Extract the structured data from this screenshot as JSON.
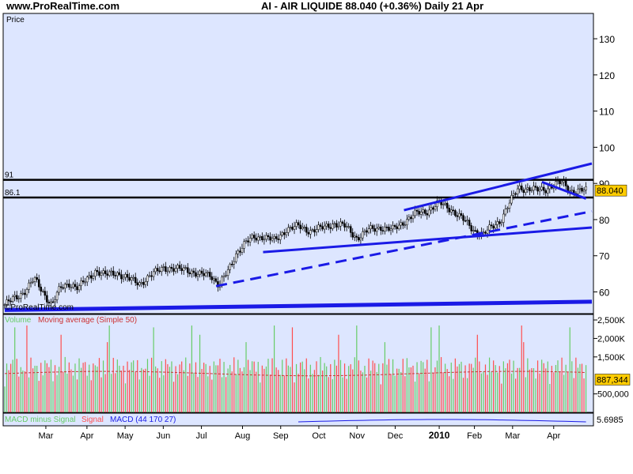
{
  "header": {
    "site": "www.ProRealTime.com",
    "title": "AI - AIR LIQUIDE    88.040 (+0.36%)    Daily  21 Apr"
  },
  "colors": {
    "panel_bg": "#dde6ff",
    "up_candle": "#ffffff",
    "down_candle": "#000000",
    "trendline": "#1a1ae6",
    "volume_up": "#66cc66",
    "volume_down": "#ff4d4d",
    "volume_ma": "#cc3333",
    "macd_hist": "#66cc66",
    "macd_signal": "#ff4d4d",
    "macd_line": "#1a1ae6",
    "price_tag": "#ffcc00"
  },
  "chart_data": [
    {
      "type": "candlestick",
      "panel": "price",
      "ylabel": "Price",
      "ylim": [
        54,
        137
      ],
      "yticks": [
        60,
        70,
        80,
        90,
        100,
        110,
        120,
        130
      ],
      "xticks": [
        "Mar",
        "Apr",
        "May",
        "Jun",
        "Jul",
        "Aug",
        "Sep",
        "Oct",
        "Nov",
        "Dec",
        "2010",
        "Feb",
        "Mar",
        "Apr"
      ],
      "last_price": "88.040",
      "horizontal_levels": [
        {
          "label": "91",
          "value": 91.0
        },
        {
          "label": "86.1",
          "value": 86.1
        }
      ],
      "trendlines": [
        {
          "name": "support-long",
          "points": [
            [
              0,
              55.0
            ],
            [
              1.0,
              57.3
            ]
          ]
        },
        {
          "name": "channel-lower-dashed",
          "points": [
            [
              0.36,
              61.6
            ],
            [
              1.0,
              82.3
            ]
          ]
        },
        {
          "name": "channel-lower",
          "points": [
            [
              0.44,
              71.0
            ],
            [
              1.0,
              77.8
            ]
          ]
        },
        {
          "name": "channel-upper",
          "points": [
            [
              0.68,
              82.6
            ],
            [
              1.0,
              95.5
            ]
          ]
        },
        {
          "name": "recent-top",
          "points": [
            [
              0.915,
              90.4
            ],
            [
              0.99,
              85.8
            ]
          ]
        }
      ],
      "price_path": [
        [
          0.0,
          56.5
        ],
        [
          0.02,
          58.5
        ],
        [
          0.035,
          60.5
        ],
        [
          0.05,
          63.5
        ],
        [
          0.065,
          60.0
        ],
        [
          0.08,
          56.5
        ],
        [
          0.095,
          61.0
        ],
        [
          0.11,
          62.5
        ],
        [
          0.125,
          61.0
        ],
        [
          0.14,
          63.5
        ],
        [
          0.155,
          66.0
        ],
        [
          0.17,
          64.5
        ],
        [
          0.19,
          65.5
        ],
        [
          0.21,
          63.5
        ],
        [
          0.23,
          62.5
        ],
        [
          0.25,
          64.5
        ],
        [
          0.27,
          67.0
        ],
        [
          0.29,
          66.0
        ],
        [
          0.31,
          66.5
        ],
        [
          0.33,
          64.5
        ],
        [
          0.35,
          65.0
        ],
        [
          0.365,
          61.8
        ],
        [
          0.38,
          65.5
        ],
        [
          0.395,
          71.0
        ],
        [
          0.41,
          73.5
        ],
        [
          0.425,
          75.0
        ],
        [
          0.44,
          75.5
        ],
        [
          0.46,
          74.0
        ],
        [
          0.48,
          77.5
        ],
        [
          0.5,
          78.0
        ],
        [
          0.52,
          77.0
        ],
        [
          0.54,
          77.5
        ],
        [
          0.56,
          79.0
        ],
        [
          0.58,
          78.0
        ],
        [
          0.6,
          75.0
        ],
        [
          0.62,
          77.0
        ],
        [
          0.64,
          78.0
        ],
        [
          0.66,
          77.0
        ],
        [
          0.68,
          79.5
        ],
        [
          0.7,
          81.5
        ],
        [
          0.72,
          82.5
        ],
        [
          0.74,
          84.5
        ],
        [
          0.76,
          83.0
        ],
        [
          0.78,
          80.0
        ],
        [
          0.8,
          77.0
        ],
        [
          0.815,
          75.8
        ],
        [
          0.83,
          78.0
        ],
        [
          0.845,
          80.0
        ],
        [
          0.86,
          84.5
        ],
        [
          0.875,
          89.0
        ],
        [
          0.89,
          88.5
        ],
        [
          0.905,
          88.0
        ],
        [
          0.92,
          88.5
        ],
        [
          0.935,
          89.5
        ],
        [
          0.95,
          90.2
        ],
        [
          0.965,
          88.0
        ],
        [
          0.98,
          87.8
        ],
        [
          0.99,
          88.04
        ]
      ]
    },
    {
      "type": "bar",
      "panel": "volume",
      "legend": [
        "Volume",
        "Moving average (Simple 50)"
      ],
      "yticks": [
        "2,500K",
        "2,000K",
        "1,500K",
        "500,000"
      ],
      "ytick_values": [
        2500000,
        2000000,
        1500000,
        500000
      ],
      "ylim": [
        0,
        2650000
      ],
      "last_volume": "887,344",
      "ma_level": 1050000
    },
    {
      "type": "line",
      "panel": "macd",
      "legend": [
        "MACD minus Signal",
        "Signal",
        "MACD (44 170 27)"
      ],
      "last_value": "5.6985"
    }
  ]
}
